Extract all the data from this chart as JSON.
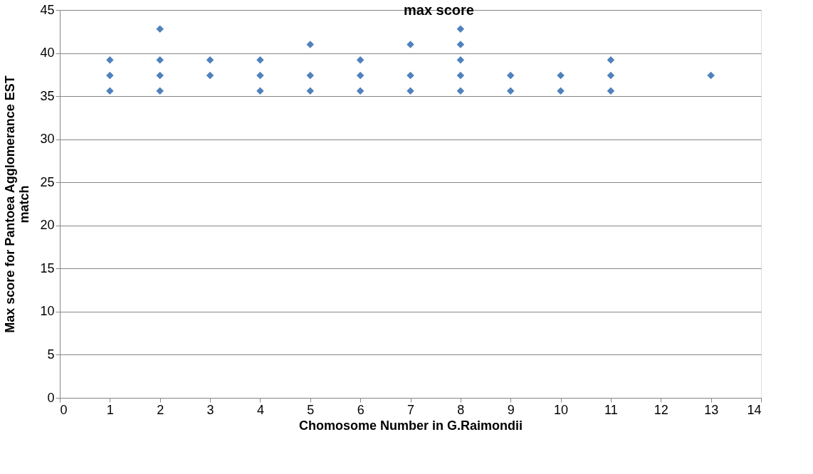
{
  "chart_data": {
    "type": "scatter",
    "title": "max score",
    "xlabel": "Chomosome Number in G.Raimondii",
    "ylabel": "Max score for Pantoea Agglomerance EST\nmatch",
    "x": [
      1,
      1,
      1,
      2,
      2,
      2,
      2,
      3,
      3,
      4,
      4,
      4,
      5,
      5,
      5,
      6,
      6,
      6,
      7,
      7,
      7,
      8,
      8,
      8,
      8,
      8,
      9,
      9,
      10,
      10,
      11,
      11,
      11,
      13
    ],
    "series": [
      {
        "color": "#4f81bd",
        "values": [
          35.6,
          37.4,
          39.2,
          35.6,
          37.4,
          39.2,
          42.8,
          37.4,
          39.2,
          35.6,
          37.4,
          39.2,
          35.6,
          37.4,
          41.0,
          35.6,
          37.4,
          39.2,
          35.6,
          37.4,
          41.0,
          35.6,
          37.4,
          39.2,
          41.0,
          42.8,
          35.6,
          37.4,
          35.6,
          37.4,
          35.6,
          37.4,
          39.2,
          37.4
        ]
      }
    ],
    "xlim": [
      0,
      14
    ],
    "xticks": [
      0,
      1,
      2,
      3,
      4,
      5,
      6,
      7,
      8,
      9,
      10,
      11,
      12,
      13,
      14
    ],
    "ylim": [
      0,
      45
    ],
    "yticks": [
      0,
      5,
      10,
      15,
      20,
      25,
      30,
      35,
      40,
      45
    ],
    "grid": "y",
    "marker": "diamond"
  }
}
